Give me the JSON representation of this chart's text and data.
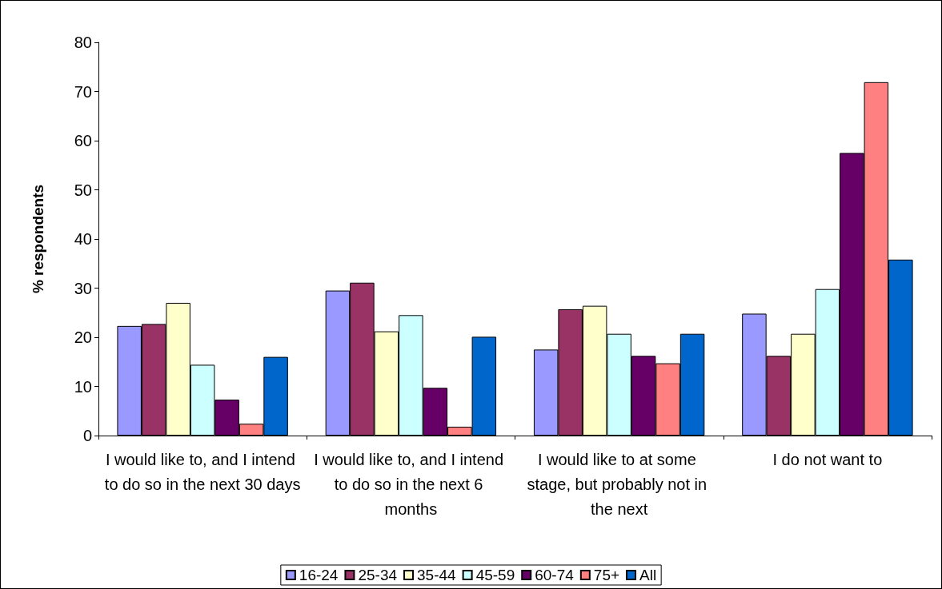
{
  "chart_data": {
    "type": "bar",
    "ylabel": "% respondents",
    "categories": [
      "I would like to, and I intend to do so in the next 30 days",
      "I would like to, and I intend to do so in the next 6 months",
      "I would like to at some stage, but probably not in the next",
      "I do not want to"
    ],
    "series": [
      {
        "name": "16-24",
        "color": "#9999ff",
        "values": [
          22.3,
          29.5,
          17.5,
          24.8
        ]
      },
      {
        "name": "25-34",
        "color": "#993366",
        "values": [
          22.7,
          31.1,
          25.7,
          16.2
        ]
      },
      {
        "name": "35-44",
        "color": "#ffffcc",
        "values": [
          27,
          21.2,
          26.4,
          20.7
        ]
      },
      {
        "name": "45-59",
        "color": "#ccffff",
        "values": [
          14.4,
          24.5,
          20.7,
          29.8
        ]
      },
      {
        "name": "60-74",
        "color": "#660066",
        "values": [
          7.3,
          9.7,
          16.2,
          57.5
        ]
      },
      {
        "name": "75+",
        "color": "#ff8080",
        "values": [
          2.4,
          1.8,
          14.7,
          71.9
        ]
      },
      {
        "name": "All",
        "color": "#0066cc",
        "values": [
          16,
          20.1,
          20.7,
          35.8
        ]
      }
    ],
    "ylim": [
      0,
      80
    ],
    "yticks": [
      0,
      10,
      20,
      30,
      40,
      50,
      60,
      70,
      80
    ],
    "grid": false,
    "legend": "bottom"
  }
}
